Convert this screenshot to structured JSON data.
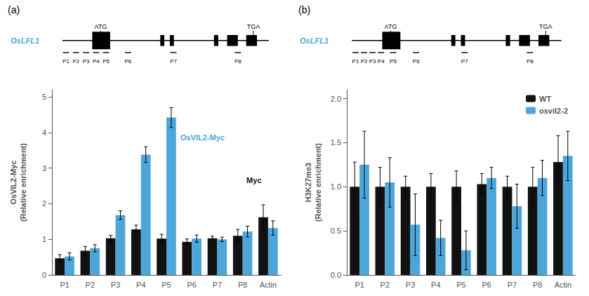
{
  "chart_data": [
    {
      "type": "bar",
      "title": "(a)",
      "ylabel": "OsVIL2-Myc\n(Relative enrichment)",
      "categories": [
        "P1",
        "P2",
        "P3",
        "P4",
        "P5",
        "P6",
        "P7",
        "P8",
        "Actin"
      ],
      "series": [
        {
          "color": "#111111",
          "values": [
            0.47,
            0.68,
            1.03,
            1.28,
            1.02,
            0.93,
            1.03,
            1.1,
            1.62
          ],
          "errors": [
            0.1,
            0.12,
            0.08,
            0.12,
            0.12,
            0.08,
            0.06,
            0.18,
            0.35
          ]
        },
        {
          "color": "#4da6d9",
          "values": [
            0.52,
            0.75,
            1.68,
            3.38,
            4.42,
            1.02,
            1.0,
            1.22,
            1.32
          ],
          "errors": [
            0.1,
            0.1,
            0.12,
            0.22,
            0.28,
            0.1,
            0.06,
            0.15,
            0.2
          ]
        }
      ],
      "ylim": [
        0,
        5.2
      ],
      "yticks": [
        0,
        1,
        2,
        3,
        4,
        5
      ],
      "grid": false,
      "annotations": [
        "Myc",
        "OsVIL2-Myc",
        "OsLFL1",
        "ATG",
        "TGA",
        "P1",
        "P2",
        "P3",
        "P4",
        "P5",
        "P6",
        "P7",
        "P8"
      ]
    },
    {
      "type": "bar",
      "title": "(b)",
      "ylabel": "H3K27me3\n(Relative enrichment)",
      "categories": [
        "P1",
        "P2",
        "P3",
        "P4",
        "P5",
        "P6",
        "P7",
        "P8",
        "Actin"
      ],
      "series": [
        {
          "name": "WT",
          "color": "#111111",
          "values": [
            1.0,
            1.0,
            1.0,
            1.0,
            1.0,
            1.03,
            1.0,
            1.0,
            1.28
          ],
          "errors": [
            0.28,
            0.22,
            0.12,
            0.15,
            0.18,
            0.12,
            0.12,
            0.22,
            0.3
          ]
        },
        {
          "name": "osvil2-2",
          "color": "#4da6d9",
          "values": [
            1.25,
            1.05,
            0.57,
            0.42,
            0.28,
            1.1,
            0.78,
            1.1,
            1.35
          ],
          "errors": [
            0.38,
            0.28,
            0.35,
            0.2,
            0.22,
            0.12,
            0.25,
            0.2,
            0.28
          ]
        }
      ],
      "ylim": [
        0,
        2.1
      ],
      "yticks": [
        {
          "value": 0,
          "label": "0.0"
        },
        0.5,
        {
          "value": 1,
          "label": "1.0"
        },
        1.5,
        {
          "value": 2,
          "label": "2.0"
        }
      ],
      "grid": false,
      "legend": "upper right",
      "annotations": [
        "OsLFL1",
        "ATG",
        "TGA",
        "P1",
        "P2",
        "P3",
        "P4",
        "P5",
        "P6",
        "P7",
        "P8"
      ]
    }
  ]
}
